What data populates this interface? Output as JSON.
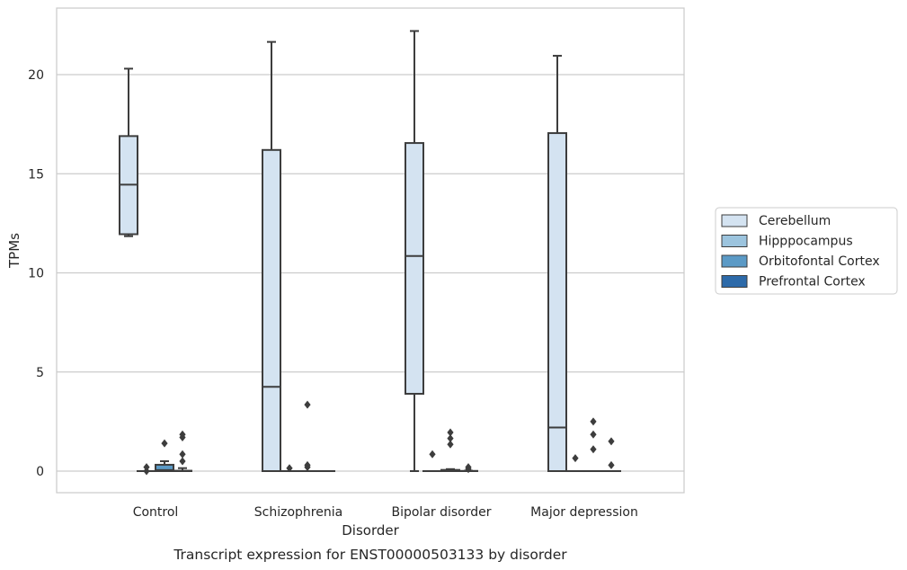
{
  "chart_data": {
    "type": "box",
    "title": "",
    "caption": "Transcript expression for ENST00000503133 by disorder",
    "xlabel": "Disorder",
    "ylabel": "TPMs",
    "ylim": [
      -1.1,
      23.3
    ],
    "yticks": [
      0,
      5,
      10,
      15,
      20
    ],
    "grid": "horizontal",
    "legend_position": "right",
    "categories": [
      "Control",
      "Schizophrenia",
      "Bipolar disorder",
      "Major depression"
    ],
    "series": [
      {
        "name": "Cerebellum",
        "color": "#d4e3f1",
        "boxes": [
          {
            "whisker_low": 11.85,
            "q1": 11.95,
            "median": 14.45,
            "q3": 16.9,
            "whisker_high": 20.3,
            "outliers": []
          },
          {
            "whisker_low": 0,
            "q1": 0,
            "median": 4.25,
            "q3": 16.2,
            "whisker_high": 21.65,
            "outliers": []
          },
          {
            "whisker_low": 0,
            "q1": 3.9,
            "median": 10.85,
            "q3": 16.55,
            "whisker_high": 22.2,
            "outliers": []
          },
          {
            "whisker_low": 0,
            "q1": 0,
            "median": 2.2,
            "q3": 17.05,
            "whisker_high": 20.95,
            "outliers": []
          }
        ]
      },
      {
        "name": "Hipppocampus",
        "color": "#9cc4de",
        "boxes": [
          {
            "whisker_low": 0,
            "q1": 0,
            "median": 0,
            "q3": 0,
            "whisker_high": 0,
            "outliers": [
              0.2,
              0.0
            ]
          },
          {
            "whisker_low": 0,
            "q1": 0,
            "median": 0,
            "q3": 0,
            "whisker_high": 0,
            "outliers": [
              0.15
            ]
          },
          {
            "whisker_low": 0,
            "q1": 0,
            "median": 0,
            "q3": 0,
            "whisker_high": 0,
            "outliers": [
              0.85
            ]
          },
          {
            "whisker_low": 0,
            "q1": 0,
            "median": 0,
            "q3": 0,
            "whisker_high": 0,
            "outliers": [
              0.65
            ]
          }
        ]
      },
      {
        "name": "Orbitofontal Cortex",
        "color": "#5b9ac6",
        "boxes": [
          {
            "whisker_low": 0,
            "q1": 0,
            "median": 0.05,
            "q3": 0.32,
            "whisker_high": 0.5,
            "outliers": [
              1.4
            ]
          },
          {
            "whisker_low": 0,
            "q1": 0,
            "median": 0,
            "q3": 0,
            "whisker_high": 0,
            "outliers": [
              3.35,
              0.3,
              0.2
            ]
          },
          {
            "whisker_low": 0,
            "q1": 0,
            "median": 0.02,
            "q3": 0.06,
            "whisker_high": 0.1,
            "outliers": [
              1.95,
              1.65,
              1.35
            ]
          },
          {
            "whisker_low": 0,
            "q1": 0,
            "median": 0,
            "q3": 0,
            "whisker_high": 0,
            "outliers": [
              2.5,
              1.85,
              1.1
            ]
          }
        ]
      },
      {
        "name": "Prefrontal Cortex",
        "color": "#2d6aa9",
        "boxes": [
          {
            "whisker_low": 0,
            "q1": 0,
            "median": 0,
            "q3": 0.02,
            "whisker_high": 0.15,
            "outliers": [
              1.85,
              1.7,
              0.85,
              0.5
            ]
          },
          {
            "whisker_low": 0,
            "q1": 0,
            "median": 0,
            "q3": 0,
            "whisker_high": 0,
            "outliers": []
          },
          {
            "whisker_low": 0,
            "q1": 0,
            "median": 0,
            "q3": 0.01,
            "whisker_high": 0.02,
            "outliers": [
              0.2,
              0.1
            ]
          },
          {
            "whisker_low": 0,
            "q1": 0,
            "median": 0,
            "q3": 0,
            "whisker_high": 0,
            "outliers": [
              1.5,
              0.3
            ]
          }
        ]
      }
    ]
  }
}
